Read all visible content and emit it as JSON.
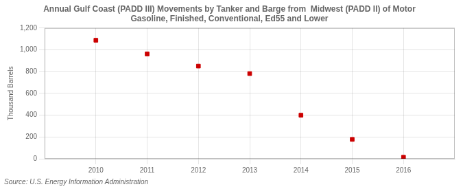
{
  "chart_data": {
    "type": "scatter",
    "title": "Annual Gulf Coast (PADD III) Movements by Tanker and Barge from  Midwest (PADD II) of Motor\nGasoline, Finished, Conventional, Ed55 and Lower",
    "ylabel": "Thousand Barrels",
    "annotations": [
      "Source: U.S. Energy Information Administration"
    ],
    "x": [
      2010,
      2011,
      2012,
      2013,
      2014,
      2015,
      2016
    ],
    "values": [
      1088,
      962,
      851,
      782,
      400,
      178,
      14
    ],
    "color": "#cc0000",
    "marker": "square",
    "xlim": [
      2009,
      2017
    ],
    "xticks": [
      2010,
      2011,
      2012,
      2013,
      2014,
      2015,
      2016
    ],
    "ylim": [
      0,
      1200
    ],
    "yticks": [
      0,
      200,
      400,
      600,
      {
        "value": 800,
        "label": "800"
      },
      {
        "value": 1000,
        "label": "1,000"
      },
      {
        "value": 1200,
        "label": "1,200"
      }
    ],
    "grid": true
  }
}
